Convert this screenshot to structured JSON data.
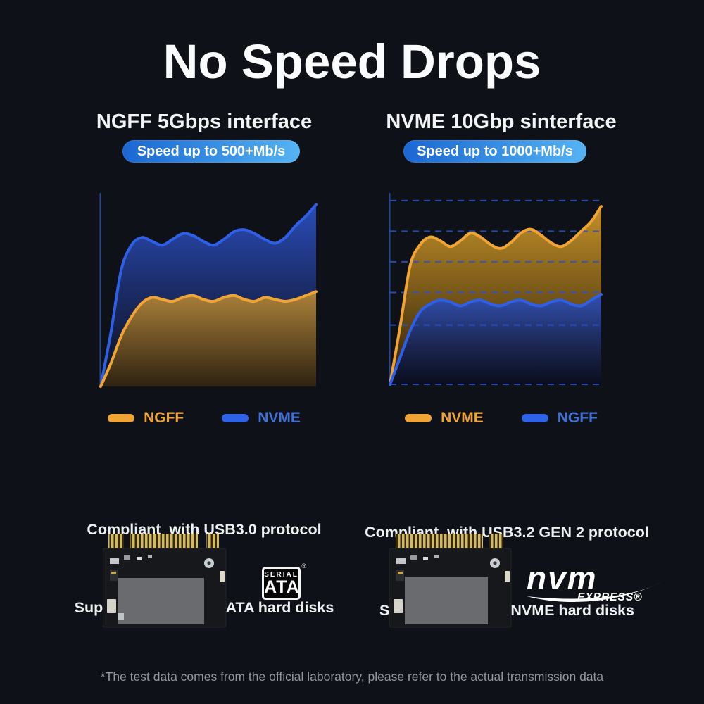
{
  "page": {
    "background": "#0e1117",
    "title": "No Speed Drops",
    "footnote": "*The test data comes from the official laboratory, please refer to the actual transmission data"
  },
  "palette": {
    "orange": "#f0a433",
    "blue": "#2e5fe6",
    "grid": "#2a54c8",
    "axis": "#2b4da6"
  },
  "badge_gradient": [
    "#1a67d2",
    "#55b3f3"
  ],
  "columns": [
    {
      "heading": "NGFF 5Gbps interface",
      "badge": "Speed up to 500+Mb/s",
      "legend": [
        {
          "label": "NGFF",
          "swatch": "#f0a433",
          "color": "#f0a433"
        },
        {
          "label": "NVME",
          "swatch": "#2e62e8",
          "color": "#4170d9"
        }
      ],
      "compliance": [
        "Compliant  with USB3.0 protocol",
        "Support M.2  NGFF/SATA hard disks"
      ]
    },
    {
      "heading": "NVME 10Gbp sinterface",
      "badge": "Speed up to 1000+Mb/s",
      "legend": [
        {
          "label": "NVME",
          "swatch": "#f0a433",
          "color": "#f0a433"
        },
        {
          "label": "NGFF",
          "swatch": "#2e62e8",
          "color": "#4170d9"
        }
      ],
      "compliance": [
        "Compliant  with USB3.2 GEN 2 protocol",
        "Support M.2 PCIE NVME hard disks"
      ]
    }
  ],
  "logos": {
    "sata": {
      "line1": "SERIAL",
      "line2": "ATA",
      "reg": "®"
    },
    "nvme": {
      "main": "nvm",
      "sub": "EXPRESS®"
    }
  },
  "chart_data": [
    {
      "type": "area",
      "title": "NGFF 5Gbps interface",
      "xlabel": "",
      "ylabel": "relative transfer speed (%, axes unlabeled in image)",
      "ylim": [
        0,
        100
      ],
      "gridlines": false,
      "legend_position": "bottom",
      "series": [
        {
          "name": "NVME",
          "color_key": "blue",
          "values": [
            0,
            28,
            60,
            73,
            77,
            75,
            73,
            76,
            79,
            78,
            75,
            73,
            76,
            80,
            81,
            79,
            76,
            74,
            77,
            83,
            88,
            94
          ]
        },
        {
          "name": "NGFF",
          "color_key": "orange",
          "values": [
            0,
            12,
            26,
            36,
            43,
            46,
            45,
            44,
            46,
            47,
            45,
            44,
            46,
            47,
            45,
            44,
            46,
            45,
            44,
            45,
            47,
            49
          ]
        }
      ]
    },
    {
      "type": "area",
      "title": "NVME 10Gbp sinterface",
      "xlabel": "",
      "ylabel": "relative transfer speed (%, axes unlabeled in image)",
      "ylim": [
        0,
        100
      ],
      "gridlines": true,
      "gridlines_pct": [
        96,
        80,
        64,
        48,
        31,
        0
      ],
      "legend_position": "bottom",
      "series": [
        {
          "name": "NVME",
          "color_key": "orange",
          "values": [
            0,
            30,
            62,
            73,
            77,
            75,
            72,
            75,
            79,
            77,
            73,
            71,
            74,
            79,
            81,
            78,
            74,
            72,
            75,
            80,
            85,
            93
          ]
        },
        {
          "name": "NGFF",
          "color_key": "blue",
          "values": [
            0,
            14,
            28,
            38,
            42,
            44,
            43,
            41,
            43,
            44,
            42,
            41,
            43,
            44,
            42,
            41,
            43,
            44,
            42,
            41,
            44,
            47
          ]
        }
      ]
    }
  ]
}
